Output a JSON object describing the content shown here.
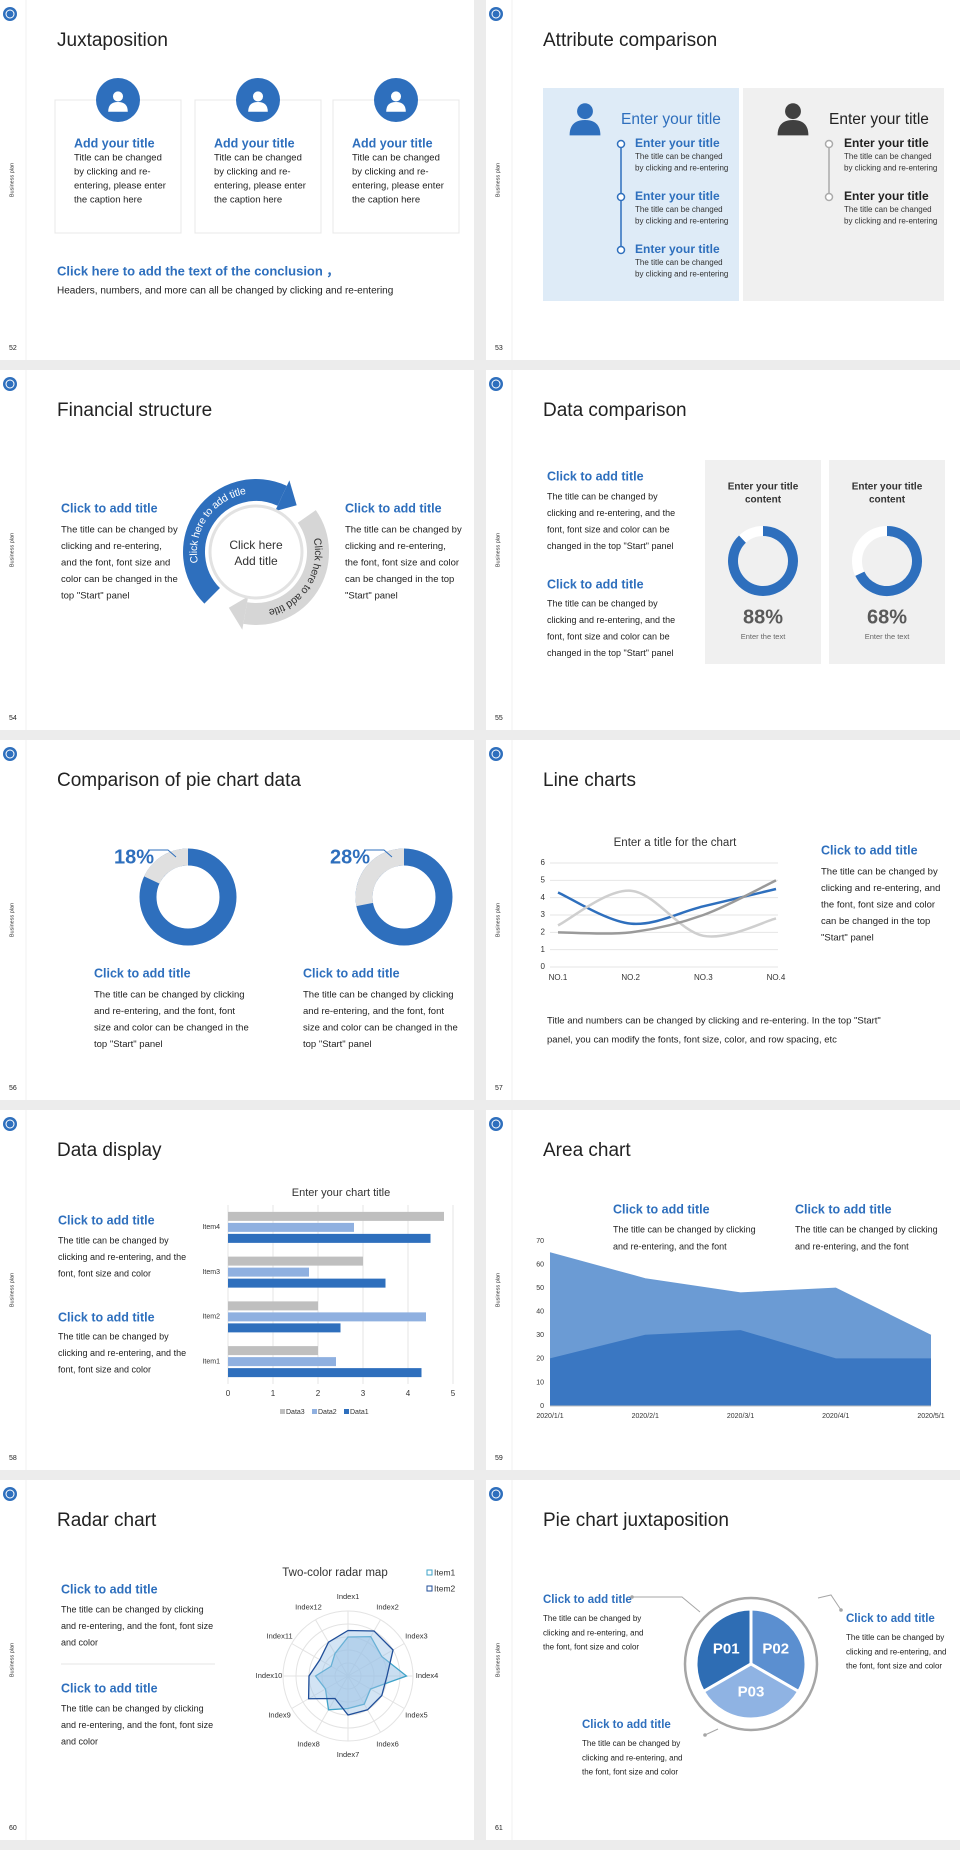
{
  "slides": [
    {
      "number": "52",
      "side_label": "Business plan",
      "title": "Juxtaposition",
      "cards": [
        {
          "title": "Add your title",
          "lines": [
            "Title can be changed",
            "by clicking and re-",
            "entering, please enter",
            "the caption here"
          ]
        },
        {
          "title": "Add your title",
          "lines": [
            "Title can be changed",
            "by clicking and re-",
            "entering, please enter",
            "the caption here"
          ]
        },
        {
          "title": "Add your title",
          "lines": [
            "Title can be changed",
            "by clicking and re-",
            "entering, please enter",
            "the caption here"
          ]
        }
      ],
      "conclusion": "Click here to add the text of the conclusion ，",
      "note": "Headers, numbers, and more can all be changed by clicking and re-entering"
    },
    {
      "number": "53",
      "side_label": "Business plan",
      "title": "Attribute comparison",
      "panels": [
        {
          "heading": "Enter your title",
          "items": [
            {
              "title": "Enter your title",
              "lines": [
                "The title can be changed",
                "by clicking and re-entering"
              ]
            },
            {
              "title": "Enter your title",
              "lines": [
                "The title can be changed",
                "by clicking and re-entering"
              ]
            },
            {
              "title": "Enter your title",
              "lines": [
                "The title can be changed",
                "by clicking and re-entering"
              ]
            }
          ]
        },
        {
          "heading": "Enter your title",
          "items": [
            {
              "title": "Enter your title",
              "lines": [
                "The title can be changed",
                "by clicking and re-entering"
              ]
            },
            {
              "title": "Enter your title",
              "lines": [
                "The title can be changed",
                "by clicking and re-entering"
              ]
            }
          ]
        }
      ]
    },
    {
      "number": "54",
      "side_label": "Business plan",
      "title": "Financial structure",
      "blocks": [
        {
          "title": "Click to add title",
          "lines": [
            "The title can be changed by",
            "clicking and re-entering,",
            "and the font, font size and",
            "color can be changed in the",
            "top \"Start\" panel"
          ]
        },
        {
          "title": "Click to add title",
          "lines": [
            "The title can be changed by",
            "clicking and re-entering,",
            "the font, font size and color",
            "can be changed in the top",
            "\"Start\" panel"
          ]
        }
      ],
      "arc_texts": [
        "Click here to add title",
        "Click here to add title"
      ],
      "center": [
        "Click here",
        "Add title"
      ]
    },
    {
      "number": "55",
      "side_label": "Business plan",
      "title": "Data comparison",
      "blocks": [
        {
          "title": "Click to add title",
          "lines": [
            "The title can be changed by",
            "clicking and re-entering, and the",
            "font, font size and color can be",
            "changed in the top \"Start\" panel"
          ]
        },
        {
          "title": "Click to add title",
          "lines": [
            "The title can be changed by",
            "clicking and re-entering, and the",
            "font, font size and color can be",
            "changed in the top \"Start\" panel"
          ]
        }
      ],
      "donuts": [
        {
          "title": [
            "Enter your title",
            "content"
          ],
          "value": 88,
          "value_label": "88%",
          "caption": "Enter the text"
        },
        {
          "title": [
            "Enter your title",
            "content"
          ],
          "value": 68,
          "value_label": "68%",
          "caption": "Enter the text"
        }
      ]
    },
    {
      "number": "56",
      "side_label": "Business plan",
      "title": "Comparison of pie chart data",
      "donuts": [
        {
          "value": 18,
          "value_label": "18%",
          "title": "Click to add title",
          "lines": [
            "The title can be changed by clicking",
            "and re-entering, and the font, font",
            "size and color can be changed in the",
            "top \"Start\" panel"
          ]
        },
        {
          "value": 28,
          "value_label": "28%",
          "title": "Click to add title",
          "lines": [
            "The title can be changed by clicking",
            "and re-entering, and the font, font",
            "size and color can be changed in the",
            "top \"Start\" panel"
          ]
        }
      ]
    },
    {
      "number": "57",
      "side_label": "Business plan",
      "title": "Line charts",
      "chart_data": {
        "type": "line",
        "title": "Enter a title for the chart",
        "categories": [
          "NO.1",
          "NO.2",
          "NO.3",
          "NO.4"
        ],
        "series": [
          {
            "color": "#2e6fbd",
            "values": [
              4.3,
              2.5,
              3.5,
              4.5
            ]
          },
          {
            "color": "#cfcfcf",
            "values": [
              2.4,
              4.4,
              1.8,
              2.8
            ]
          },
          {
            "color": "#9a9a9a",
            "values": [
              2.0,
              2.0,
              3.0,
              5.0
            ]
          }
        ],
        "ylim": [
          0,
          6
        ],
        "yticks": [
          0,
          1,
          2,
          3,
          4,
          5,
          6
        ],
        "grid": true
      },
      "block": {
        "title": "Click to add title",
        "lines": [
          "The title can be changed by",
          "clicking and re-entering, and",
          "the font, font size and color",
          "can be changed in the top",
          "\"Start\" panel"
        ]
      },
      "note": [
        "Title and numbers can be changed by clicking and re-entering. In the top \"Start\"",
        "panel, you can modify the fonts, font size, color, and row spacing, etc"
      ]
    },
    {
      "number": "58",
      "side_label": "Business plan",
      "title": "Data display",
      "chart_data": {
        "type": "bar",
        "orientation": "horizontal",
        "title": "Enter your chart title",
        "categories": [
          "Item1",
          "Item2",
          "Item3",
          "Item4"
        ],
        "series": [
          {
            "name": "Data1",
            "color": "#2e6fbd",
            "values": [
              4.3,
              2.5,
              3.5,
              4.5
            ]
          },
          {
            "name": "Data2",
            "color": "#8fb0e0",
            "values": [
              2.4,
              4.4,
              1.8,
              2.8
            ]
          },
          {
            "name": "Data3",
            "color": "#bfbfbf",
            "values": [
              2.0,
              2.0,
              3.0,
              4.8
            ]
          }
        ],
        "xlim": [
          0,
          5
        ],
        "xticks": [
          0,
          1,
          2,
          3,
          4,
          5
        ],
        "grid": true
      },
      "blocks": [
        {
          "title": "Click to add title",
          "lines": [
            "The title can be changed by",
            "clicking and re-entering, and the",
            "font, font size and color"
          ]
        },
        {
          "title": "Click to add title",
          "lines": [
            "The title can be changed by",
            "clicking and re-entering, and the",
            "font, font size and color"
          ]
        }
      ]
    },
    {
      "number": "59",
      "side_label": "Business plan",
      "title": "Area chart",
      "chart_data": {
        "type": "area",
        "categories": [
          "2020/1/1",
          "2020/2/1",
          "2020/3/1",
          "2020/4/1",
          "2020/5/1"
        ],
        "series": [
          {
            "color": "#6b9bd4",
            "values": [
              65,
              54,
              48,
              50,
              30
            ]
          },
          {
            "color": "#3a77c2",
            "values": [
              20,
              30,
              32,
              20,
              20
            ]
          }
        ],
        "ylim": [
          0,
          70
        ],
        "yticks": [
          0,
          10,
          20,
          30,
          40,
          50,
          60,
          70
        ],
        "grid": false
      },
      "blocks": [
        {
          "title": "Click to add title",
          "lines": [
            "The title can be changed by clicking",
            "and re-entering, and the font"
          ]
        },
        {
          "title": "Click to add title",
          "lines": [
            "The title can be changed by clicking",
            "and re-entering, and the font"
          ]
        }
      ]
    },
    {
      "number": "60",
      "side_label": "Business plan",
      "title": "Radar chart",
      "chart_data": {
        "type": "radar",
        "title": "Two-color radar map",
        "categories": [
          "Index1",
          "Index2",
          "Index3",
          "Index4",
          "Index5",
          "Index6",
          "Index7",
          "Index8",
          "Index9",
          "Index10",
          "Index11",
          "Index12"
        ],
        "series": [
          {
            "name": "Item1",
            "color": "#3fa3c8",
            "values": [
              6,
              7,
              6,
              9,
              4,
              5,
              5,
              6,
              4,
              5,
              3,
              4
            ]
          },
          {
            "name": "Item2",
            "color": "#1f4e99",
            "values": [
              7,
              8,
              8,
              6,
              6,
              6,
              6,
              4,
              7,
              6,
              5,
              6
            ]
          }
        ],
        "rlim": [
          0,
          10
        ],
        "rticks": [
          2,
          4,
          6,
          8,
          10
        ],
        "grid": true
      },
      "blocks": [
        {
          "title": "Click to add title",
          "lines": [
            "The title can be changed by clicking",
            "and re-entering, and the font, font size",
            "and color"
          ]
        },
        {
          "title": "Click to add title",
          "lines": [
            "The title can be changed by clicking",
            "and re-entering, and the font, font size",
            "and color"
          ]
        }
      ]
    },
    {
      "number": "61",
      "side_label": "Business plan",
      "title": "Pie chart juxtaposition",
      "segments": [
        "P01",
        "P02",
        "P03"
      ],
      "blocks": [
        {
          "title": "Click to add title",
          "lines": [
            "The title can be changed by",
            "clicking and re-entering, and",
            "the font, font size and color"
          ]
        },
        {
          "title": "Click to add title",
          "lines": [
            "The title can be changed by",
            "clicking and re-entering, and",
            "the font, font size and color"
          ]
        },
        {
          "title": "Click to add title",
          "lines": [
            "The title can be changed by",
            "clicking and re-entering, and",
            "the font, font size and color"
          ]
        }
      ]
    }
  ]
}
